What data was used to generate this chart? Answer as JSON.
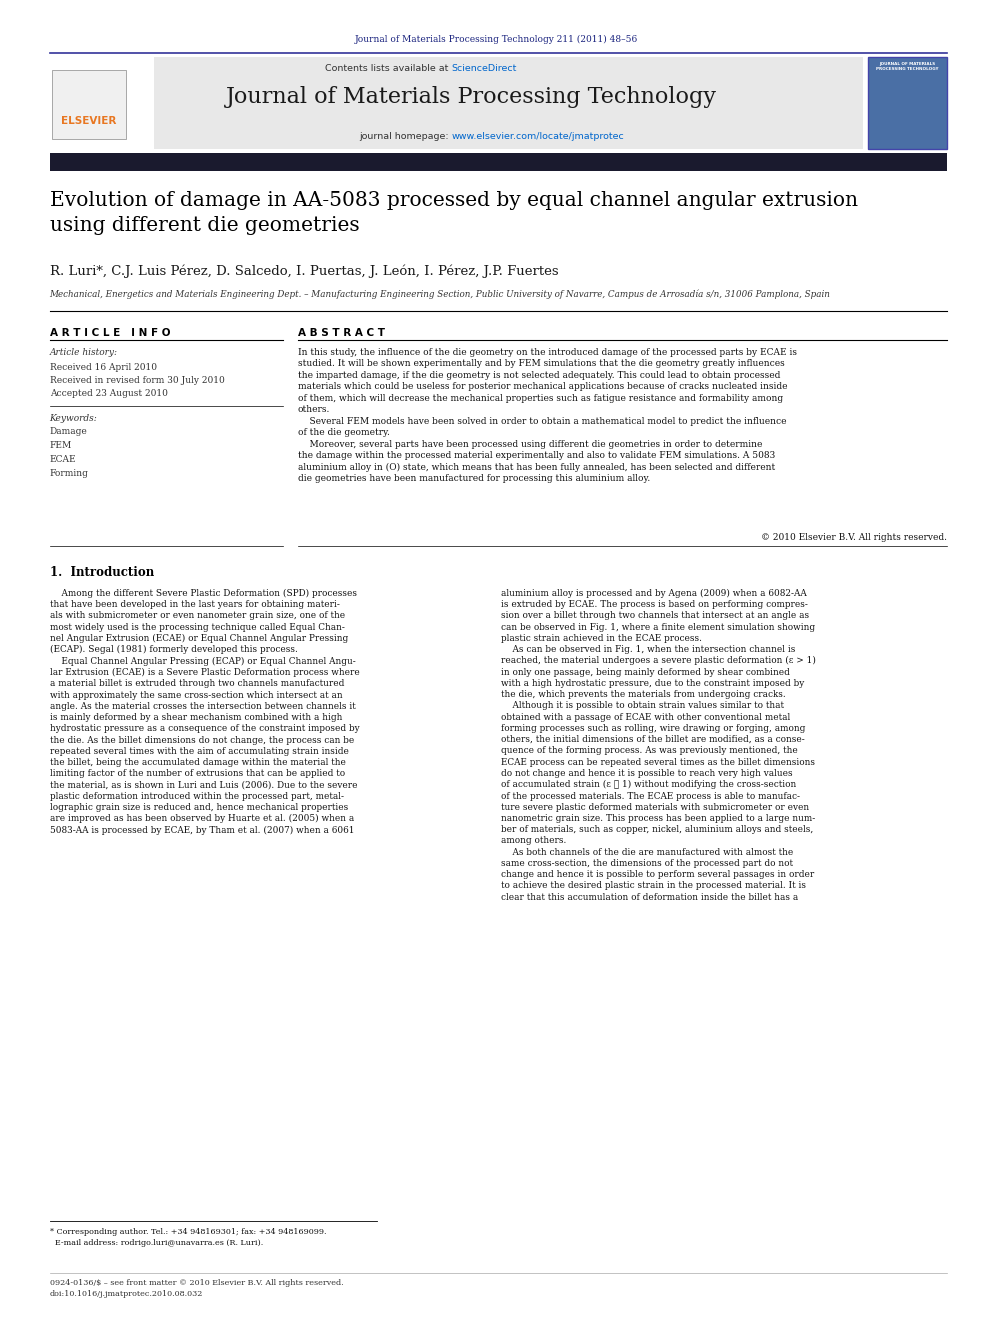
{
  "page_width": 9.92,
  "page_height": 13.23,
  "bg_color": "#ffffff",
  "header_journal_ref": "Journal of Materials Processing Technology 211 (2011) 48–56",
  "header_journal_ref_color": "#1a237e",
  "journal_banner_bg": "#e8e8e8",
  "journal_banner_text": "Journal of Materials Processing Technology",
  "contents_text": "Contents lists available at ",
  "sciencedirect_text": "ScienceDirect",
  "sciencedirect_color": "#0066cc",
  "homepage_text": "journal homepage: ",
  "homepage_url": "www.elsevier.com/locate/jmatprotec",
  "homepage_url_color": "#0066cc",
  "dark_bar_color": "#1a1a2e",
  "paper_title": "Evolution of damage in AA-5083 processed by equal channel angular extrusion\nusing different die geometries",
  "authors": "R. Luri*, C.J. Luis Pérez, D. Salcedo, I. Puertas, J. León, I. Pérez, J.P. Fuertes",
  "affiliation": "Mechanical, Energetics and Materials Engineering Dept. – Manufacturing Engineering Section, Public University of Navarre, Campus de Arrosadía s/n, 31006 Pamplona, Spain",
  "article_info_header": "A R T I C L E   I N F O",
  "abstract_header": "A B S T R A C T",
  "article_history_label": "Article history:",
  "received_1": "Received 16 April 2010",
  "received_2": "Received in revised form 30 July 2010",
  "accepted": "Accepted 23 August 2010",
  "keywords_label": "Keywords:",
  "keywords": [
    "Damage",
    "FEM",
    "ECAE",
    "Forming"
  ],
  "abstract_text": "In this study, the influence of the die geometry on the introduced damage of the processed parts by ECAE is\nstudied. It will be shown experimentally and by FEM simulations that the die geometry greatly influences\nthe imparted damage, if the die geometry is not selected adequately. This could lead to obtain processed\nmaterials which could be useless for posterior mechanical applications because of cracks nucleated inside\nof them, which will decrease the mechanical properties such as fatigue resistance and formability among\nothers.\n    Several FEM models have been solved in order to obtain a mathematical model to predict the influence\nof the die geometry.\n    Moreover, several parts have been processed using different die geometries in order to determine\nthe damage within the processed material experimentally and also to validate FEM simulations. A 5083\naluminium alloy in (O) state, which means that has been fully annealed, has been selected and different\ndie geometries have been manufactured for processing this aluminium alloy.",
  "copyright_text": "© 2010 Elsevier B.V. All rights reserved.",
  "section1_title": "1.  Introduction",
  "intro_col1_p1": "    Among the different Severe Plastic Deformation (SPD) processes\nthat have been developed in the last years for obtaining materi-\nals with submicrometer or even nanometer grain size, one of the\nmost widely used is the processing technique called Equal Chan-\nnel Angular Extrusion (ECAE) or Equal Channel Angular Pressing\n(ECAP). Segal (1981) formerly developed this process.\n    Equal Channel Angular Pressing (ECAP) or Equal Channel Angu-\nlar Extrusion (ECAE) is a Severe Plastic Deformation process where\na material billet is extruded through two channels manufactured\nwith approximately the same cross-section which intersect at an\nangle. As the material crosses the intersection between channels it\nis mainly deformed by a shear mechanism combined with a high\nhydrostatic pressure as a consequence of the constraint imposed by\nthe die. As the billet dimensions do not change, the process can be\nrepeated several times with the aim of accumulating strain inside\nthe billet, being the accumulated damage within the material the\nlimiting factor of the number of extrusions that can be applied to\nthe material, as is shown in Luri and Luis (2006). Due to the severe\nplastic deformation introduced within the processed part, metal-\nlographic grain size is reduced and, hence mechanical properties\nare improved as has been observed by Huarte et al. (2005) when a\n5083-AA is processed by ECAE, by Tham et al. (2007) when a 6061",
  "intro_col2_p1": "aluminium alloy is processed and by Agena (2009) when a 6082-AA\nis extruded by ECAE. The process is based on performing compres-\nsion over a billet through two channels that intersect at an angle as\ncan be observed in Fig. 1, where a finite element simulation showing\nplastic strain achieved in the ECAE process.\n    As can be observed in Fig. 1, when the intersection channel is\nreached, the material undergoes a severe plastic deformation (ε > 1)\nin only one passage, being mainly deformed by shear combined\nwith a high hydrostatic pressure, due to the constraint imposed by\nthe die, which prevents the materials from undergoing cracks.\n    Although it is possible to obtain strain values similar to that\nobtained with a passage of ECAE with other conventional metal\nforming processes such as rolling, wire drawing or forging, among\nothers, the initial dimensions of the billet are modified, as a conse-\nquence of the forming process. As was previously mentioned, the\nECAE process can be repeated several times as the billet dimensions\ndo not change and hence it is possible to reach very high values\nof accumulated strain (ε ≫ 1) without modifying the cross-section\nof the processed materials. The ECAE process is able to manufac-\nture severe plastic deformed materials with submicrometer or even\nnanometric grain size. This process has been applied to a large num-\nber of materials, such as copper, nickel, aluminium alloys and steels,\namong others.\n    As both channels of the die are manufactured with almost the\nsame cross-section, the dimensions of the processed part do not\nchange and hence it is possible to perform several passages in order\nto achieve the desired plastic strain in the processed material. It is\nclear that this accumulation of deformation inside the billet has a",
  "footnote_text": "* Corresponding author. Tel.: +34 948169301; fax: +34 948169099.\n  E-mail address: rodrigo.luri@unavarra.es (R. Luri).",
  "footer_text": "0924-0136/$ – see front matter © 2010 Elsevier B.V. All rights reserved.\ndoi:10.1016/j.jmatprotec.2010.08.032"
}
